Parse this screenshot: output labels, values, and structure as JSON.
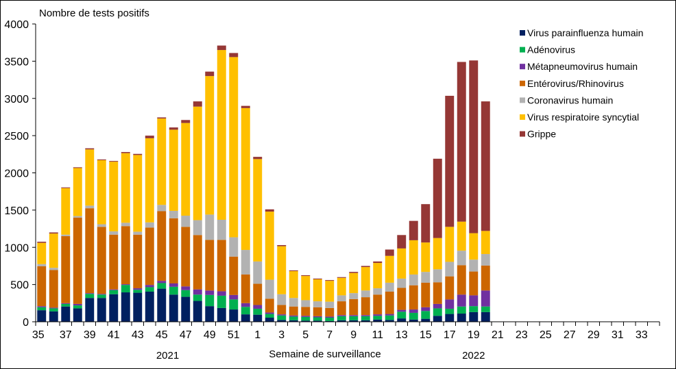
{
  "chart_data": {
    "type": "bar",
    "stacked": true,
    "title": "",
    "ylabel": "Nombre de tests positifs",
    "xlabel": "Semaine de surveillance",
    "ylim": [
      0,
      4000
    ],
    "yticks": [
      0,
      500,
      1000,
      1500,
      2000,
      2500,
      3000,
      3500,
      4000
    ],
    "grid": false,
    "legend_position": "top-right",
    "year_labels": [
      {
        "label": "2021",
        "center_week_index": 10.5
      },
      {
        "label": "2022",
        "center_week_index": 36
      }
    ],
    "categories": [
      "35",
      "36",
      "37",
      "38",
      "39",
      "40",
      "41",
      "42",
      "43",
      "44",
      "45",
      "46",
      "47",
      "48",
      "49",
      "50",
      "51",
      "52",
      "1",
      "2",
      "3",
      "4",
      "5",
      "6",
      "7",
      "8",
      "9",
      "10",
      "11",
      "12",
      "13",
      "14",
      "15",
      "16",
      "17",
      "18",
      "19",
      "20",
      "21",
      "22",
      "23",
      "24",
      "25",
      "26",
      "27",
      "28",
      "29",
      "30",
      "31",
      "32",
      "33",
      "34"
    ],
    "tick_labels": [
      "35",
      "",
      "37",
      "",
      "39",
      "",
      "41",
      "",
      "43",
      "",
      "45",
      "",
      "47",
      "",
      "49",
      "",
      "51",
      "",
      "1",
      "",
      "3",
      "",
      "5",
      "",
      "7",
      "",
      "9",
      "",
      "11",
      "",
      "13",
      "",
      "15",
      "",
      "17",
      "",
      "19",
      "",
      "21",
      "",
      "23",
      "",
      "25",
      "",
      "27",
      "",
      "29",
      "",
      "31",
      "",
      "33",
      ""
    ],
    "series": [
      {
        "name": "Virus parainfluenza humain",
        "color": "#002060",
        "values": [
          155,
          140,
          205,
          180,
          320,
          320,
          370,
          395,
          390,
          405,
          445,
          365,
          335,
          280,
          210,
          185,
          165,
          100,
          95,
          55,
          25,
          20,
          15,
          15,
          10,
          20,
          20,
          20,
          30,
          25,
          45,
          30,
          40,
          80,
          105,
          110,
          130,
          130
        ]
      },
      {
        "name": "Adénovirus",
        "color": "#00B050",
        "values": [
          40,
          40,
          35,
          40,
          55,
          45,
          55,
          100,
          40,
          60,
          75,
          105,
          90,
          85,
          150,
          165,
          135,
          100,
          80,
          50,
          60,
          50,
          50,
          45,
          45,
          55,
          55,
          55,
          50,
          60,
          90,
          90,
          105,
          100,
          70,
          95,
          80,
          75
        ]
      },
      {
        "name": "Métapneumovirus humain",
        "color": "#7030A0",
        "values": [
          15,
          10,
          10,
          20,
          10,
          10,
          10,
          10,
          20,
          30,
          30,
          45,
          50,
          70,
          60,
          60,
          60,
          50,
          50,
          20,
          15,
          15,
          15,
          15,
          15,
          15,
          15,
          15,
          20,
          20,
          25,
          45,
          50,
          60,
          125,
          160,
          145,
          215
        ]
      },
      {
        "name": "Entérovirus/Rhinovirus",
        "color": "#CC6600",
        "values": [
          535,
          505,
          900,
          1160,
          1140,
          900,
          735,
          780,
          720,
          770,
          935,
          875,
          800,
          730,
          680,
          690,
          515,
          385,
          285,
          185,
          125,
          120,
          120,
          120,
          115,
          185,
          215,
          240,
          265,
          300,
          295,
          325,
          330,
          290,
          310,
          395,
          320,
          335
        ]
      },
      {
        "name": "Coronavirus humain",
        "color": "#B2B2B2",
        "values": [
          30,
          30,
          20,
          20,
          35,
          35,
          45,
          45,
          40,
          70,
          85,
          100,
          150,
          200,
          340,
          270,
          260,
          330,
          300,
          255,
          145,
          115,
          90,
          80,
          85,
          80,
          80,
          90,
          85,
          120,
          125,
          145,
          145,
          175,
          195,
          195,
          160,
          155
        ]
      },
      {
        "name": "Virus respiratoire syncytial",
        "color": "#FFC000",
        "values": [
          285,
          460,
          625,
          645,
          755,
          860,
          935,
          935,
          1030,
          1130,
          1160,
          1090,
          1245,
          1525,
          1860,
          2280,
          2420,
          1905,
          1375,
          915,
          645,
          360,
          325,
          295,
          280,
          235,
          270,
          315,
          340,
          360,
          405,
          460,
          395,
          420,
          470,
          390,
          355,
          310
        ]
      },
      {
        "name": "Grippe",
        "color": "#953735",
        "values": [
          15,
          15,
          10,
          10,
          15,
          10,
          10,
          15,
          15,
          35,
          15,
          30,
          40,
          70,
          60,
          60,
          55,
          30,
          30,
          30,
          15,
          10,
          10,
          10,
          10,
          10,
          15,
          15,
          20,
          85,
          180,
          260,
          515,
          1065,
          1760,
          2145,
          2320,
          1740
        ]
      }
    ]
  }
}
